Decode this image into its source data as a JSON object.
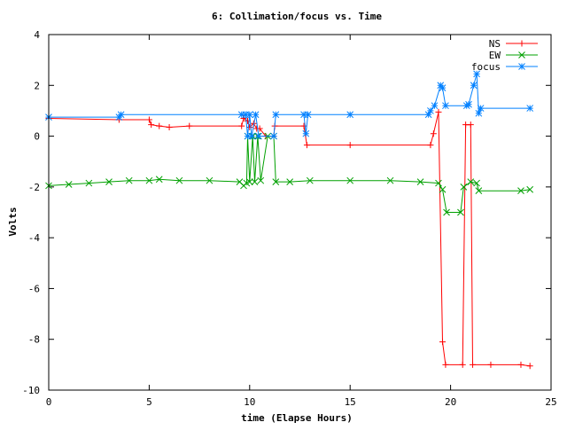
{
  "chart_data": {
    "type": "line",
    "title": "6: Collimation/focus vs. Time",
    "xlabel": "time (Elapse Hours)",
    "ylabel": "Volts",
    "xlim": [
      0,
      25
    ],
    "ylim": [
      -10,
      4
    ],
    "xticks": [
      0,
      5,
      10,
      15,
      20,
      25
    ],
    "yticks": [
      -10,
      -8,
      -6,
      -4,
      -2,
      0,
      2,
      4
    ],
    "xtick_labels": [
      "0",
      "5",
      "10",
      "15",
      "20",
      "25"
    ],
    "ytick_labels": [
      "-10",
      "-8",
      "-6",
      "-4",
      "-2",
      "0",
      "2",
      "4"
    ],
    "grid": false,
    "legend_position": "top-right",
    "series": [
      {
        "name": "NS",
        "color": "#ff0000",
        "marker": "plus",
        "points": [
          [
            0.0,
            0.7
          ],
          [
            3.5,
            0.65
          ],
          [
            5.0,
            0.65
          ],
          [
            5.1,
            0.45
          ],
          [
            5.5,
            0.4
          ],
          [
            6.0,
            0.35
          ],
          [
            7.0,
            0.4
          ],
          [
            9.6,
            0.4
          ],
          [
            9.7,
            0.7
          ],
          [
            9.9,
            0.6
          ],
          [
            10.0,
            0.35
          ],
          [
            10.2,
            0.5
          ],
          [
            10.35,
            0.3
          ],
          [
            10.5,
            0.3
          ],
          [
            10.8,
            0.0
          ],
          [
            11.2,
            0.0
          ],
          [
            11.25,
            0.4
          ],
          [
            12.7,
            0.4
          ],
          [
            12.85,
            -0.35
          ],
          [
            15.0,
            -0.35
          ],
          [
            19.0,
            -0.35
          ],
          [
            19.15,
            0.1
          ],
          [
            19.4,
            0.95
          ],
          [
            19.6,
            -8.1
          ],
          [
            19.75,
            -9.0
          ],
          [
            20.6,
            -9.0
          ],
          [
            20.75,
            0.45
          ],
          [
            21.0,
            0.45
          ],
          [
            21.1,
            -9.0
          ],
          [
            22.0,
            -9.0
          ],
          [
            23.5,
            -9.0
          ],
          [
            23.95,
            -9.05
          ]
        ]
      },
      {
        "name": "EW",
        "color": "#00a000",
        "marker": "cross",
        "points": [
          [
            0.0,
            -1.95
          ],
          [
            1.0,
            -1.9
          ],
          [
            2.0,
            -1.85
          ],
          [
            3.0,
            -1.8
          ],
          [
            4.0,
            -1.75
          ],
          [
            5.0,
            -1.75
          ],
          [
            5.5,
            -1.7
          ],
          [
            6.5,
            -1.75
          ],
          [
            8.0,
            -1.75
          ],
          [
            9.5,
            -1.8
          ],
          [
            9.7,
            -1.95
          ],
          [
            9.85,
            -1.85
          ],
          [
            9.9,
            0.0
          ],
          [
            10.0,
            -1.8
          ],
          [
            10.15,
            0.0
          ],
          [
            10.25,
            -1.8
          ],
          [
            10.4,
            0.0
          ],
          [
            10.55,
            -1.75
          ],
          [
            10.9,
            0.0
          ],
          [
            11.2,
            0.0
          ],
          [
            11.3,
            -1.8
          ],
          [
            12.0,
            -1.8
          ],
          [
            13.0,
            -1.75
          ],
          [
            15.0,
            -1.75
          ],
          [
            17.0,
            -1.75
          ],
          [
            18.5,
            -1.8
          ],
          [
            19.4,
            -1.85
          ],
          [
            19.6,
            -2.1
          ],
          [
            19.8,
            -3.0
          ],
          [
            20.5,
            -3.0
          ],
          [
            20.65,
            -2.0
          ],
          [
            21.0,
            -1.8
          ],
          [
            21.3,
            -1.85
          ],
          [
            21.4,
            -2.15
          ],
          [
            23.5,
            -2.15
          ],
          [
            23.95,
            -2.1
          ]
        ]
      },
      {
        "name": "focus",
        "color": "#0080ff",
        "marker": "star",
        "points": [
          [
            0.0,
            0.75
          ],
          [
            3.5,
            0.75
          ],
          [
            3.6,
            0.85
          ],
          [
            9.6,
            0.85
          ],
          [
            9.8,
            0.85
          ],
          [
            9.9,
            0.0
          ],
          [
            10.0,
            0.85
          ],
          [
            10.1,
            0.0
          ],
          [
            10.3,
            0.85
          ],
          [
            10.45,
            0.0
          ],
          [
            11.2,
            0.0
          ],
          [
            11.3,
            0.85
          ],
          [
            12.7,
            0.85
          ],
          [
            12.8,
            0.1
          ],
          [
            12.9,
            0.85
          ],
          [
            15.0,
            0.85
          ],
          [
            18.9,
            0.85
          ],
          [
            19.0,
            1.0
          ],
          [
            19.2,
            1.2
          ],
          [
            19.5,
            2.0
          ],
          [
            19.6,
            1.9
          ],
          [
            19.75,
            1.2
          ],
          [
            20.8,
            1.2
          ],
          [
            20.9,
            1.25
          ],
          [
            21.15,
            2.0
          ],
          [
            21.3,
            2.45
          ],
          [
            21.4,
            0.9
          ],
          [
            21.5,
            1.1
          ],
          [
            23.95,
            1.1
          ]
        ]
      }
    ]
  }
}
